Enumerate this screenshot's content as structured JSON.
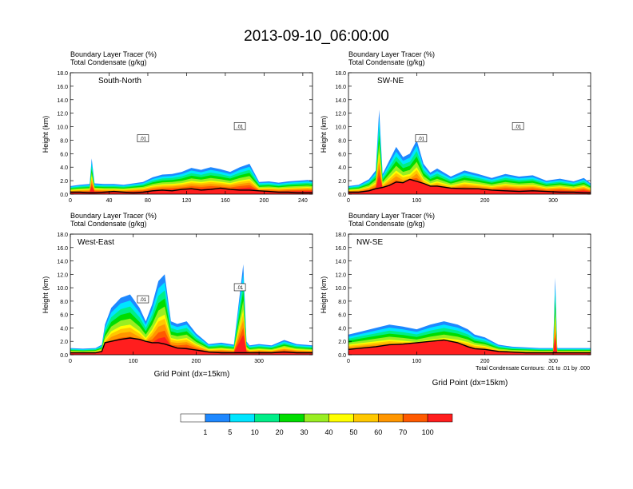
{
  "figure": {
    "title": "2013-09-10_06:00:00",
    "colorbar": {
      "levels": [
        "1",
        "5",
        "10",
        "20",
        "30",
        "40",
        "50",
        "60",
        "70",
        "100"
      ],
      "colors": [
        "#ffffff",
        "#1e88ff",
        "#00e5ff",
        "#00ee88",
        "#00dd00",
        "#99ee22",
        "#ffff00",
        "#ffc800",
        "#ff9600",
        "#ff5a00",
        "#ff1e1e"
      ]
    }
  },
  "chart_data": [
    {
      "type": "area",
      "id": "south-north",
      "panel_label": "South-North",
      "top_left_lines": [
        "Boundary Layer Tracer   (%)",
        "Total Condensate   (g/kg)"
      ],
      "ylabel": "Height (km)",
      "xlabel": "",
      "footnote": "",
      "xlim": [
        0,
        250
      ],
      "ylim": [
        0,
        18
      ],
      "xticks": [
        "0",
        "40",
        "80",
        "120",
        "160",
        "200",
        "240"
      ],
      "yticks": [
        "0.0",
        "2.0",
        "4.0",
        "6.0",
        "8.0",
        "10.0",
        "12.0",
        "14.0",
        "16.0",
        "18.0"
      ],
      "contour_labels": [
        ".01",
        ".01"
      ],
      "x": [
        0,
        10,
        20,
        22,
        25,
        35,
        45,
        55,
        65,
        75,
        85,
        95,
        105,
        115,
        125,
        135,
        145,
        155,
        165,
        175,
        185,
        195,
        205,
        215,
        225,
        235,
        245,
        250
      ],
      "tracer_top_km": [
        1.2,
        1.4,
        1.5,
        5.3,
        1.6,
        1.5,
        1.5,
        1.4,
        1.6,
        1.8,
        2.5,
        2.9,
        3.0,
        3.3,
        3.9,
        3.6,
        4.0,
        3.7,
        3.3,
        4.0,
        4.5,
        1.8,
        1.9,
        1.7,
        1.9,
        2.0,
        2.1,
        2.0
      ],
      "terrain_km": [
        0.3,
        0.3,
        0.2,
        0.2,
        0.2,
        0.3,
        0.4,
        0.3,
        0.2,
        0.3,
        0.5,
        0.6,
        0.5,
        0.7,
        0.8,
        0.6,
        0.7,
        0.9,
        0.7,
        0.6,
        0.6,
        0.5,
        0.4,
        0.3,
        0.3,
        0.2,
        0.2,
        0.2
      ]
    },
    {
      "type": "area",
      "id": "sw-ne",
      "panel_label": "SW-NE",
      "top_left_lines": [
        "Boundary Layer Tracer   (%)",
        "Total Condensate   (g/kg)"
      ],
      "ylabel": "Height (km)",
      "xlabel": "",
      "footnote": "",
      "xlim": [
        0,
        355
      ],
      "ylim": [
        0,
        18
      ],
      "xticks": [
        "0",
        "100",
        "200",
        "300"
      ],
      "yticks": [
        "0.0",
        "2.0",
        "4.0",
        "6.0",
        "8.0",
        "10.0",
        "12.0",
        "14.0",
        "16.0",
        "18.0"
      ],
      "contour_labels": [
        ".01",
        ".01"
      ],
      "x": [
        0,
        15,
        30,
        40,
        45,
        50,
        60,
        70,
        80,
        90,
        100,
        110,
        120,
        130,
        150,
        170,
        190,
        210,
        230,
        250,
        270,
        290,
        310,
        330,
        345,
        355
      ],
      "tracer_top_km": [
        1.2,
        1.4,
        2.2,
        3.5,
        12.5,
        3.0,
        5.0,
        7.0,
        5.5,
        6.0,
        8.0,
        4.5,
        3.2,
        3.8,
        2.6,
        3.5,
        3.0,
        2.4,
        3.0,
        2.6,
        2.8,
        2.0,
        2.3,
        1.9,
        2.4,
        1.6
      ],
      "terrain_km": [
        0.3,
        0.3,
        0.5,
        0.8,
        0.9,
        1.0,
        1.3,
        1.8,
        1.7,
        2.2,
        1.9,
        1.6,
        1.2,
        1.2,
        0.9,
        0.8,
        0.8,
        0.6,
        0.5,
        0.4,
        0.5,
        0.4,
        0.3,
        0.3,
        0.2,
        0.2
      ]
    },
    {
      "type": "area",
      "id": "west-east",
      "panel_label": "West-East",
      "top_left_lines": [
        "Boundary Layer Tracer   (%)",
        "Total Condensate   (g/kg)"
      ],
      "ylabel": "Height (km)",
      "xlabel": "Grid Point (dx=15km)",
      "footnote": "",
      "xlim": [
        0,
        385
      ],
      "ylim": [
        0,
        18
      ],
      "xticks": [
        "0",
        "100",
        "200",
        "300"
      ],
      "yticks": [
        "0.0",
        "2.0",
        "4.0",
        "6.0",
        "8.0",
        "10.0",
        "12.0",
        "14.0",
        "16.0",
        "18.0"
      ],
      "contour_labels": [
        ".01",
        ".01"
      ],
      "x": [
        0,
        20,
        40,
        50,
        55,
        65,
        80,
        95,
        110,
        120,
        130,
        140,
        150,
        160,
        170,
        185,
        200,
        220,
        240,
        260,
        275,
        280,
        285,
        300,
        320,
        340,
        360,
        385
      ],
      "tracer_top_km": [
        1.0,
        0.9,
        1.0,
        1.5,
        4.5,
        7.0,
        8.5,
        9.0,
        7.0,
        5.0,
        7.5,
        11.0,
        12.0,
        5.0,
        4.6,
        5.0,
        3.2,
        1.6,
        1.8,
        1.5,
        13.5,
        2.0,
        1.4,
        1.6,
        1.4,
        2.2,
        1.6,
        1.4
      ],
      "terrain_km": [
        0.3,
        0.3,
        0.3,
        0.5,
        1.8,
        2.0,
        2.3,
        2.5,
        2.3,
        2.0,
        1.8,
        1.8,
        1.6,
        1.3,
        1.0,
        0.9,
        0.7,
        0.4,
        0.3,
        0.3,
        0.3,
        0.3,
        0.3,
        0.3,
        0.3,
        0.4,
        0.3,
        0.3
      ]
    },
    {
      "type": "area",
      "id": "nw-se",
      "panel_label": "NW-SE",
      "top_left_lines": [
        "Boundary Layer Tracer   (%)",
        "Total Condensate   (g/kg)"
      ],
      "ylabel": "Height (km)",
      "xlabel": "Grid Point (dx=15km)",
      "footnote": "Total Condensate Contours: .01 to .01 by .000",
      "xlim": [
        0,
        355
      ],
      "ylim": [
        0,
        18
      ],
      "xticks": [
        "0",
        "100",
        "200",
        "300"
      ],
      "yticks": [
        "0.0",
        "2.0",
        "4.0",
        "6.0",
        "8.0",
        "10.0",
        "12.0",
        "14.0",
        "16.0",
        "18.0"
      ],
      "contour_labels": [],
      "x": [
        0,
        20,
        40,
        60,
        80,
        100,
        120,
        140,
        160,
        175,
        185,
        200,
        220,
        240,
        260,
        280,
        300,
        303,
        306,
        320,
        340,
        355
      ],
      "tracer_top_km": [
        3.0,
        3.5,
        4.0,
        4.5,
        4.2,
        3.8,
        4.5,
        5.0,
        4.5,
        3.8,
        3.0,
        2.6,
        1.5,
        1.2,
        1.1,
        1.0,
        1.0,
        11.5,
        1.0,
        1.0,
        1.0,
        1.0
      ],
      "terrain_km": [
        0.8,
        1.0,
        1.2,
        1.5,
        1.6,
        1.8,
        2.0,
        2.2,
        1.8,
        1.2,
        0.9,
        0.8,
        0.5,
        0.4,
        0.3,
        0.3,
        0.3,
        0.3,
        0.3,
        0.3,
        0.3,
        0.3
      ]
    }
  ]
}
